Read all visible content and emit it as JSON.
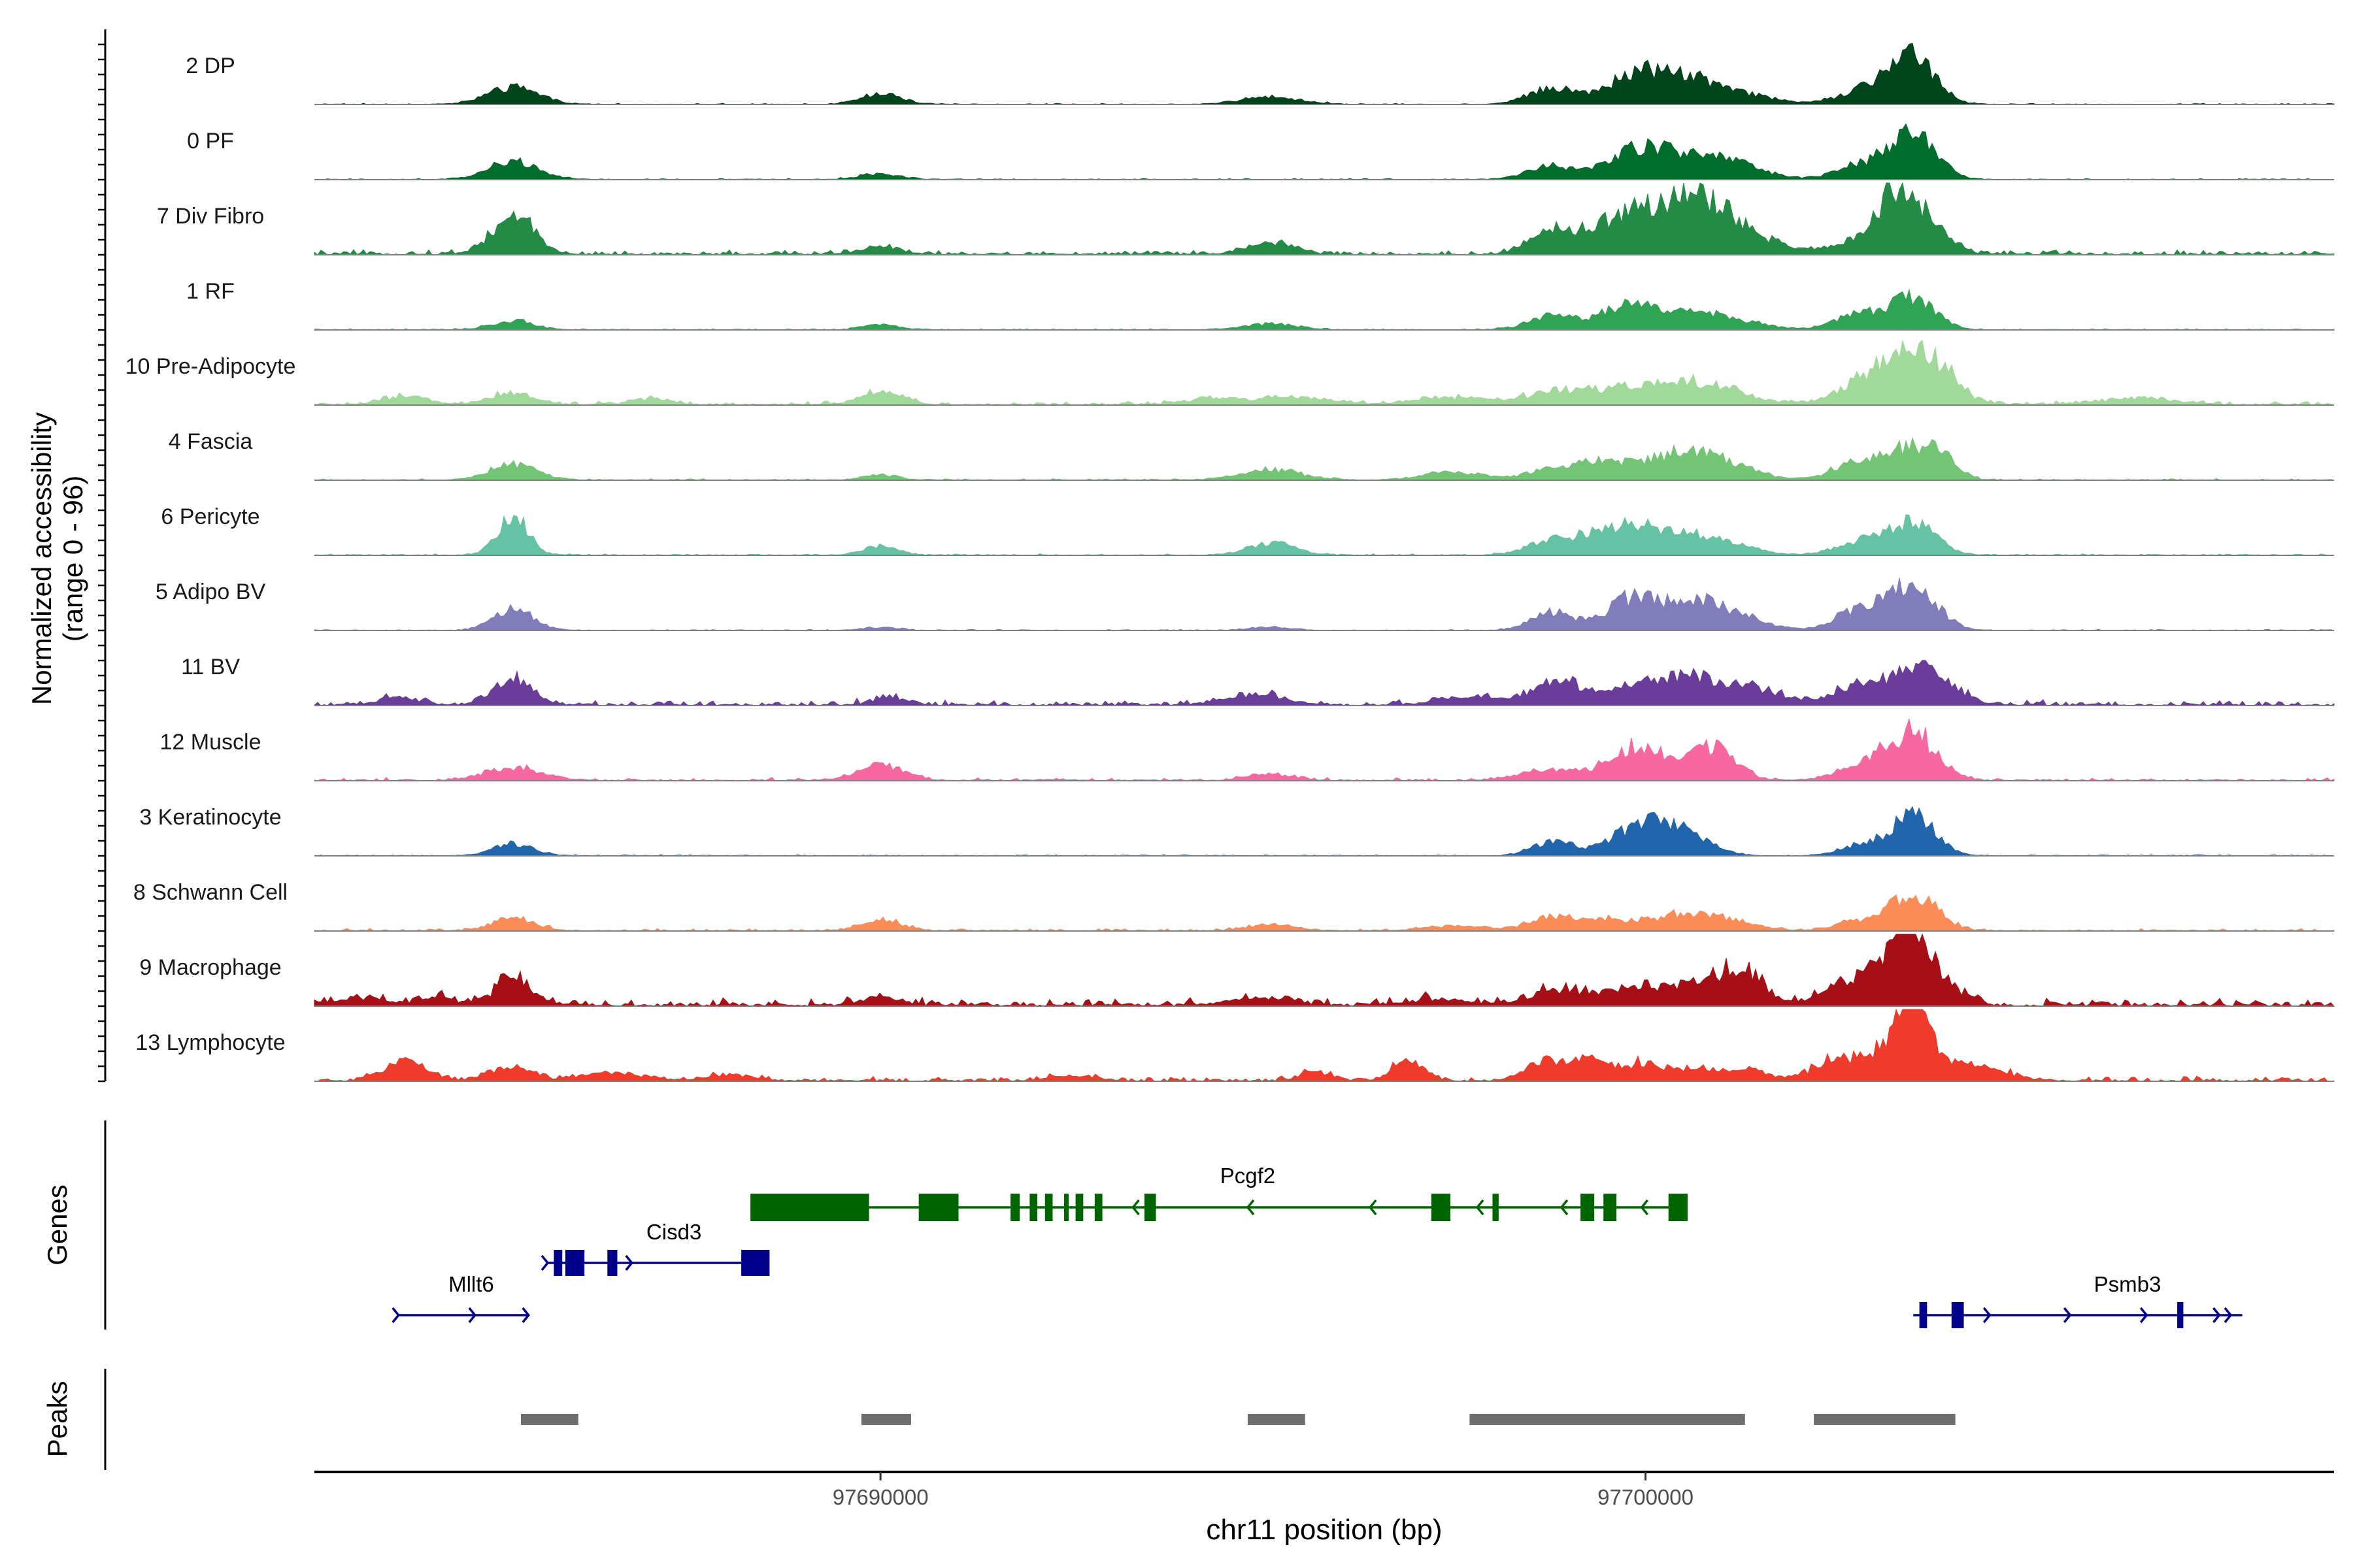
{
  "chart_data": {
    "type": "area",
    "ylabel_line1": "Normalized accessibility",
    "ylabel_line2": "(range 0 - 96)",
    "y_range": [
      0,
      96
    ],
    "xlabel": "chr11 position (bp)",
    "x_range": [
      97682600,
      97709000
    ],
    "x_ticks": [
      {
        "value": 97690000,
        "label": "97690000"
      },
      {
        "value": 97700000,
        "label": "97700000"
      }
    ],
    "genes_label": "Genes",
    "peaks_label": "Peaks",
    "tracks": [
      {
        "name": "2 DP",
        "color": "#00441b",
        "noise": 0.3,
        "peaks": [
          [
            97685200,
            340,
            22
          ],
          [
            97690000,
            260,
            14
          ],
          [
            97695100,
            380,
            10
          ],
          [
            97698800,
            320,
            22
          ],
          [
            97699800,
            340,
            32
          ],
          [
            97700400,
            380,
            28
          ],
          [
            97701000,
            520,
            18
          ],
          [
            97702800,
            320,
            16
          ],
          [
            97703400,
            300,
            42
          ],
          [
            97703600,
            260,
            28
          ]
        ]
      },
      {
        "name": "0 PF",
        "color": "#006d2c",
        "noise": 0.3,
        "peaks": [
          [
            97685200,
            320,
            24
          ],
          [
            97690000,
            260,
            8
          ],
          [
            97698800,
            320,
            18
          ],
          [
            97699800,
            300,
            35
          ],
          [
            97700400,
            360,
            28
          ],
          [
            97701100,
            420,
            22
          ],
          [
            97702800,
            320,
            18
          ],
          [
            97703400,
            280,
            45
          ],
          [
            97703700,
            240,
            25
          ]
        ]
      },
      {
        "name": "7 Div Fibro",
        "color": "#238b45",
        "noise": 1.2,
        "peaks": [
          [
            97685200,
            260,
            55
          ],
          [
            97690000,
            260,
            10
          ],
          [
            97695100,
            300,
            16
          ],
          [
            97698800,
            300,
            30
          ],
          [
            97699400,
            260,
            24
          ],
          [
            97699800,
            260,
            42
          ],
          [
            97700400,
            320,
            58
          ],
          [
            97700900,
            320,
            42
          ],
          [
            97701400,
            420,
            18
          ],
          [
            97702800,
            320,
            20
          ],
          [
            97703200,
            200,
            36
          ],
          [
            97703400,
            240,
            55
          ],
          [
            97703800,
            240,
            28
          ]
        ]
      },
      {
        "name": "1 RF",
        "color": "#31a354",
        "noise": 0.3,
        "peaks": [
          [
            97685200,
            280,
            12
          ],
          [
            97690000,
            220,
            8
          ],
          [
            97695100,
            320,
            8
          ],
          [
            97698800,
            320,
            18
          ],
          [
            97699700,
            300,
            28
          ],
          [
            97700400,
            380,
            24
          ],
          [
            97701100,
            420,
            12
          ],
          [
            97702800,
            320,
            20
          ],
          [
            97703500,
            280,
            42
          ]
        ]
      },
      {
        "name": "10 Pre-Adipocyte",
        "color": "#a1d99b",
        "noise": 1.0,
        "peaks": [
          [
            97683800,
            300,
            10
          ],
          [
            97685200,
            280,
            16
          ],
          [
            97687000,
            240,
            8
          ],
          [
            97690000,
            260,
            18
          ],
          [
            97694400,
            400,
            8
          ],
          [
            97695500,
            420,
            9
          ],
          [
            97697500,
            500,
            9
          ],
          [
            97698900,
            400,
            18
          ],
          [
            97699700,
            360,
            16
          ],
          [
            97700400,
            420,
            20
          ],
          [
            97701000,
            400,
            18
          ],
          [
            97702900,
            360,
            30
          ],
          [
            97703500,
            360,
            55
          ],
          [
            97703900,
            240,
            22
          ],
          [
            97706400,
            500,
            8
          ]
        ]
      },
      {
        "name": "4 Fascia",
        "color": "#74c476",
        "noise": 0.4,
        "peaks": [
          [
            97685200,
            300,
            22
          ],
          [
            97690000,
            220,
            7
          ],
          [
            97695100,
            380,
            14
          ],
          [
            97697500,
            380,
            10
          ],
          [
            97698900,
            380,
            16
          ],
          [
            97699500,
            320,
            18
          ],
          [
            97700400,
            420,
            30
          ],
          [
            97701000,
            420,
            20
          ],
          [
            97702800,
            320,
            26
          ],
          [
            97703500,
            300,
            42
          ],
          [
            97703900,
            200,
            18
          ]
        ]
      },
      {
        "name": "6 Pericyte",
        "color": "#66c2a4",
        "noise": 0.4,
        "peaks": [
          [
            97685200,
            200,
            50
          ],
          [
            97690000,
            220,
            12
          ],
          [
            97695100,
            300,
            16
          ],
          [
            97698800,
            320,
            20
          ],
          [
            97699300,
            260,
            16
          ],
          [
            97699800,
            300,
            32
          ],
          [
            97700400,
            380,
            22
          ],
          [
            97701000,
            420,
            14
          ],
          [
            97702800,
            300,
            18
          ],
          [
            97703500,
            300,
            42
          ]
        ]
      },
      {
        "name": "5 Adipo BV",
        "color": "#807dba",
        "noise": 0.3,
        "peaks": [
          [
            97685200,
            260,
            28
          ],
          [
            97690000,
            220,
            4
          ],
          [
            97695100,
            260,
            4
          ],
          [
            97698800,
            280,
            24
          ],
          [
            97699800,
            300,
            40
          ],
          [
            97700500,
            360,
            30
          ],
          [
            97701100,
            400,
            22
          ],
          [
            97702800,
            300,
            28
          ],
          [
            97703500,
            300,
            58
          ]
        ]
      },
      {
        "name": "11 BV",
        "color": "#6a3d9a",
        "noise": 1.4,
        "peaks": [
          [
            97683700,
            260,
            10
          ],
          [
            97685200,
            260,
            35
          ],
          [
            97690100,
            220,
            10
          ],
          [
            97694900,
            400,
            14
          ],
          [
            97697700,
            400,
            10
          ],
          [
            97698800,
            300,
            30
          ],
          [
            97699500,
            300,
            14
          ],
          [
            97700200,
            400,
            24
          ],
          [
            97700800,
            420,
            22
          ],
          [
            97701500,
            500,
            14
          ],
          [
            97702800,
            300,
            26
          ],
          [
            97703500,
            280,
            52
          ],
          [
            97704000,
            240,
            18
          ]
        ]
      },
      {
        "name": "12 Muscle",
        "color": "#f768a1",
        "noise": 0.8,
        "peaks": [
          [
            97685200,
            360,
            18
          ],
          [
            97690000,
            300,
            20
          ],
          [
            97695100,
            300,
            8
          ],
          [
            97698800,
            420,
            14
          ],
          [
            97699800,
            300,
            38
          ],
          [
            97700400,
            360,
            20
          ],
          [
            97700900,
            300,
            36
          ],
          [
            97702900,
            360,
            20
          ],
          [
            97703500,
            300,
            60
          ]
        ]
      },
      {
        "name": "3 Keratinocyte",
        "color": "#2166ac",
        "noise": 0.3,
        "peaks": [
          [
            97685200,
            260,
            16
          ],
          [
            97698800,
            260,
            20
          ],
          [
            97699800,
            320,
            28
          ],
          [
            97700400,
            360,
            40
          ],
          [
            97702800,
            260,
            14
          ],
          [
            97703500,
            280,
            55
          ]
        ]
      },
      {
        "name": "8 Schwann Cell",
        "color": "#fc8d59",
        "noise": 0.6,
        "peaks": [
          [
            97685200,
            280,
            16
          ],
          [
            97690000,
            260,
            14
          ],
          [
            97695100,
            300,
            8
          ],
          [
            97697500,
            400,
            6
          ],
          [
            97698800,
            320,
            18
          ],
          [
            97699500,
            300,
            12
          ],
          [
            97700400,
            420,
            18
          ],
          [
            97701000,
            420,
            12
          ],
          [
            97702800,
            300,
            12
          ],
          [
            97703500,
            300,
            50
          ]
        ]
      },
      {
        "name": "9 Macrophage",
        "color": "#a50f15",
        "noise": 2.0,
        "peaks": [
          [
            97683200,
            300,
            10
          ],
          [
            97684200,
            260,
            10
          ],
          [
            97685200,
            240,
            36
          ],
          [
            97690000,
            240,
            10
          ],
          [
            97695000,
            400,
            10
          ],
          [
            97697300,
            400,
            8
          ],
          [
            97698800,
            320,
            20
          ],
          [
            97699600,
            300,
            16
          ],
          [
            97700400,
            420,
            20
          ],
          [
            97701000,
            400,
            22
          ],
          [
            97701300,
            240,
            30
          ],
          [
            97702500,
            260,
            22
          ],
          [
            97703100,
            300,
            40
          ],
          [
            97703500,
            240,
            92
          ],
          [
            97704000,
            240,
            18
          ]
        ]
      },
      {
        "name": "13 Lymphocyte",
        "color": "#ef3b2c",
        "noise": 1.2,
        "peaks": [
          [
            97683800,
            260,
            28
          ],
          [
            97685200,
            260,
            18
          ],
          [
            97686500,
            400,
            10
          ],
          [
            97688000,
            300,
            8
          ],
          [
            97692500,
            300,
            6
          ],
          [
            97695700,
            200,
            12
          ],
          [
            97696900,
            200,
            26
          ],
          [
            97698700,
            260,
            24
          ],
          [
            97699200,
            260,
            18
          ],
          [
            97699900,
            360,
            22
          ],
          [
            97700800,
            300,
            14
          ],
          [
            97701400,
            200,
            14
          ],
          [
            97702400,
            260,
            22
          ],
          [
            97702900,
            260,
            26
          ],
          [
            97703400,
            200,
            92
          ],
          [
            97703600,
            200,
            40
          ],
          [
            97704000,
            300,
            20
          ],
          [
            97704600,
            300,
            10
          ]
        ]
      }
    ],
    "genes": [
      {
        "name": "Mllt6",
        "color": "#00008b",
        "row": 3,
        "strand": "+",
        "start": 97683700,
        "end": 97685400,
        "label_pos": 97684650,
        "exons": [],
        "arrows": [
          97683700,
          97684700,
          97685400
        ]
      },
      {
        "name": "Cisd3",
        "color": "#00008b",
        "row": 2,
        "strand": "+",
        "start": 97685650,
        "end": 97688550,
        "label_pos": 97687300,
        "exons": [
          [
            97685730,
            97685840
          ],
          [
            97685880,
            97686130
          ],
          [
            97686430,
            97686560
          ],
          [
            97688180,
            97688550
          ]
        ],
        "arrows": [
          97685650,
          97686750
        ]
      },
      {
        "name": "Pcgf2",
        "color": "#006400",
        "row": 1,
        "strand": "-",
        "start": 97688300,
        "end": 97700550,
        "label_pos": 97694800,
        "exons": [
          [
            97688300,
            97689850
          ],
          [
            97690500,
            97691020
          ],
          [
            97691700,
            97691820
          ],
          [
            97691950,
            97692050
          ],
          [
            97692150,
            97692250
          ],
          [
            97692400,
            97692460
          ],
          [
            97692550,
            97692650
          ],
          [
            97692800,
            97692900
          ],
          [
            97693450,
            97693600
          ],
          [
            97697200,
            97697450
          ],
          [
            97698000,
            97698080
          ],
          [
            97699150,
            97699330
          ],
          [
            97699450,
            97699620
          ],
          [
            97700300,
            97700550
          ]
        ],
        "arrows": [
          97693300,
          97694800,
          97696400,
          97697800,
          97698900,
          97699950
        ]
      },
      {
        "name": "Psmb3",
        "color": "#00008b",
        "row": 3,
        "strand": "+",
        "start": 97703500,
        "end": 97707800,
        "label_pos": 97706300,
        "exons": [
          [
            97703580,
            97703680
          ],
          [
            97704000,
            97704160
          ],
          [
            97706950,
            97707030
          ]
        ],
        "arrows": [
          97704500,
          97705550,
          97706550,
          97707500,
          97707650
        ]
      }
    ],
    "peaks": [
      [
        97685300,
        97686050
      ],
      [
        97689750,
        97690400
      ],
      [
        97694800,
        97695550
      ],
      [
        97697700,
        97701300
      ],
      [
        97702200,
        97704050
      ]
    ]
  }
}
